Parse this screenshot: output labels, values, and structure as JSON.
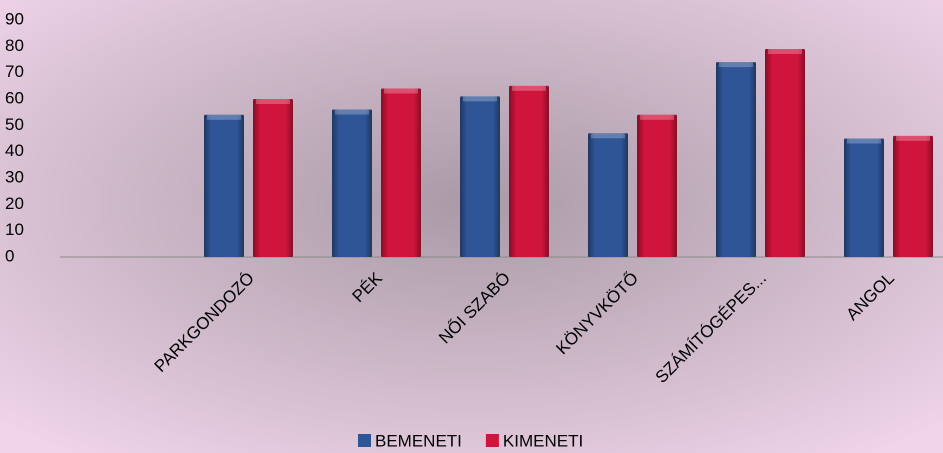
{
  "chart_data": {
    "type": "bar",
    "categories": [
      null,
      "PARKGONDOZÓ",
      "PÉK",
      "NŐI SZABÓ",
      "KÖNYVKÖTŐ",
      "SZÁMÍTÓGÉPES...",
      "ANGOL"
    ],
    "series": [
      {
        "name": "BEMENETI",
        "color": "#2f5597",
        "values": [
          null,
          54,
          56,
          61,
          47,
          74,
          45
        ]
      },
      {
        "name": "KIMENETI",
        "color": "#d0143c",
        "values": [
          null,
          60,
          64,
          65,
          54,
          79,
          46
        ]
      }
    ],
    "ylim": [
      0,
      90
    ],
    "yticks": [
      0,
      10,
      20,
      30,
      40,
      50,
      60,
      70,
      80,
      90
    ],
    "legend": "bottom"
  }
}
